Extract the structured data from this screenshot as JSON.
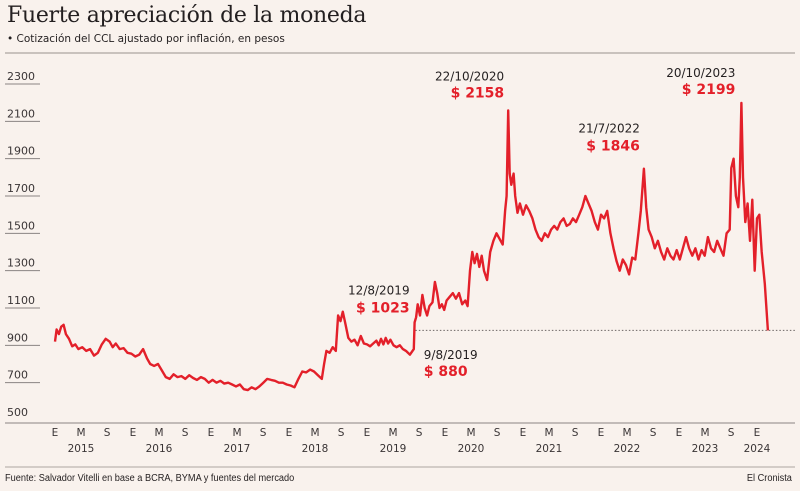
{
  "header": {
    "title": "Fuerte apreciación de la moneda",
    "subtitle": "• Cotización del CCL ajustado por inflación, en pesos"
  },
  "footer": {
    "source": "Fuente: Salvador Vitelli en base a BCRA, BYMA y fuentes del mercado",
    "brand": "El Cronista"
  },
  "colors": {
    "line": "#e3202a",
    "background": "#f9f2ed",
    "text": "#231f20",
    "grid": "#8a8482"
  },
  "chart_data": {
    "type": "line",
    "title": "Fuerte apreciación de la moneda",
    "subtitle": "Cotización del CCL ajustado por inflación, en pesos",
    "xlabel": "",
    "ylabel": "",
    "ylim": [
      500,
      2300
    ],
    "yticks": [
      2300,
      2100,
      1900,
      1700,
      1500,
      1300,
      1100,
      900,
      700,
      500
    ],
    "xlim": [
      "2015-01",
      "2024-03"
    ],
    "x_month_ticks": [
      {
        "label": "E",
        "t": 2015.0
      },
      {
        "label": "M",
        "t": 2015.333
      },
      {
        "label": "S",
        "t": 2015.667
      },
      {
        "label": "E",
        "t": 2016.0
      },
      {
        "label": "M",
        "t": 2016.333
      },
      {
        "label": "S",
        "t": 2016.667
      },
      {
        "label": "E",
        "t": 2017.0
      },
      {
        "label": "M",
        "t": 2017.333
      },
      {
        "label": "S",
        "t": 2017.667
      },
      {
        "label": "E",
        "t": 2018.0
      },
      {
        "label": "M",
        "t": 2018.333
      },
      {
        "label": "S",
        "t": 2018.667
      },
      {
        "label": "E",
        "t": 2019.0
      },
      {
        "label": "M",
        "t": 2019.333
      },
      {
        "label": "S",
        "t": 2019.667
      },
      {
        "label": "E",
        "t": 2020.0
      },
      {
        "label": "M",
        "t": 2020.333
      },
      {
        "label": "S",
        "t": 2020.667
      },
      {
        "label": "E",
        "t": 2021.0
      },
      {
        "label": "M",
        "t": 2021.333
      },
      {
        "label": "S",
        "t": 2021.667
      },
      {
        "label": "E",
        "t": 2022.0
      },
      {
        "label": "M",
        "t": 2022.333
      },
      {
        "label": "S",
        "t": 2022.667
      },
      {
        "label": "E",
        "t": 2023.0
      },
      {
        "label": "M",
        "t": 2023.333
      },
      {
        "label": "S",
        "t": 2023.667
      },
      {
        "label": "E",
        "t": 2024.0
      }
    ],
    "x_year_labels": [
      {
        "label": "2015",
        "t": 2015.333
      },
      {
        "label": "2016",
        "t": 2016.333
      },
      {
        "label": "2017",
        "t": 2017.333
      },
      {
        "label": "2018",
        "t": 2018.333
      },
      {
        "label": "2019",
        "t": 2019.333
      },
      {
        "label": "2020",
        "t": 2020.333
      },
      {
        "label": "2021",
        "t": 2021.333
      },
      {
        "label": "2022",
        "t": 2022.333
      },
      {
        "label": "2023",
        "t": 2023.333
      },
      {
        "label": "2024",
        "t": 2024.0
      }
    ],
    "grid": false,
    "reference_line": {
      "value": 980,
      "from": 2019.62,
      "style": "dotted"
    },
    "series": [
      {
        "name": "CCL ajustado por inflación",
        "points": [
          [
            2015.0,
            920
          ],
          [
            2015.02,
            985
          ],
          [
            2015.05,
            960
          ],
          [
            2015.08,
            1000
          ],
          [
            2015.11,
            1010
          ],
          [
            2015.14,
            960
          ],
          [
            2015.18,
            935
          ],
          [
            2015.22,
            895
          ],
          [
            2015.26,
            905
          ],
          [
            2015.3,
            880
          ],
          [
            2015.35,
            890
          ],
          [
            2015.4,
            870
          ],
          [
            2015.45,
            880
          ],
          [
            2015.5,
            845
          ],
          [
            2015.55,
            860
          ],
          [
            2015.6,
            905
          ],
          [
            2015.65,
            935
          ],
          [
            2015.7,
            920
          ],
          [
            2015.74,
            890
          ],
          [
            2015.78,
            910
          ],
          [
            2015.83,
            880
          ],
          [
            2015.88,
            885
          ],
          [
            2015.93,
            860
          ],
          [
            2015.98,
            855
          ],
          [
            2016.03,
            840
          ],
          [
            2016.08,
            850
          ],
          [
            2016.13,
            880
          ],
          [
            2016.18,
            830
          ],
          [
            2016.22,
            800
          ],
          [
            2016.27,
            790
          ],
          [
            2016.32,
            800
          ],
          [
            2016.37,
            765
          ],
          [
            2016.42,
            730
          ],
          [
            2016.47,
            720
          ],
          [
            2016.52,
            745
          ],
          [
            2016.57,
            730
          ],
          [
            2016.62,
            735
          ],
          [
            2016.67,
            720
          ],
          [
            2016.72,
            740
          ],
          [
            2016.77,
            725
          ],
          [
            2016.82,
            715
          ],
          [
            2016.87,
            730
          ],
          [
            2016.92,
            720
          ],
          [
            2016.97,
            700
          ],
          [
            2017.02,
            715
          ],
          [
            2017.07,
            700
          ],
          [
            2017.12,
            710
          ],
          [
            2017.17,
            695
          ],
          [
            2017.22,
            700
          ],
          [
            2017.27,
            690
          ],
          [
            2017.32,
            680
          ],
          [
            2017.37,
            690
          ],
          [
            2017.42,
            665
          ],
          [
            2017.47,
            660
          ],
          [
            2017.52,
            675
          ],
          [
            2017.57,
            665
          ],
          [
            2017.62,
            680
          ],
          [
            2017.67,
            700
          ],
          [
            2017.72,
            720
          ],
          [
            2017.77,
            715
          ],
          [
            2017.82,
            710
          ],
          [
            2017.87,
            700
          ],
          [
            2017.92,
            700
          ],
          [
            2017.97,
            690
          ],
          [
            2018.02,
            685
          ],
          [
            2018.07,
            675
          ],
          [
            2018.12,
            720
          ],
          [
            2018.17,
            760
          ],
          [
            2018.22,
            755
          ],
          [
            2018.27,
            770
          ],
          [
            2018.32,
            760
          ],
          [
            2018.37,
            740
          ],
          [
            2018.42,
            720
          ],
          [
            2018.45,
            800
          ],
          [
            2018.48,
            870
          ],
          [
            2018.52,
            860
          ],
          [
            2018.56,
            890
          ],
          [
            2018.6,
            870
          ],
          [
            2018.63,
            1060
          ],
          [
            2018.66,
            1030
          ],
          [
            2018.69,
            1080
          ],
          [
            2018.72,
            1020
          ],
          [
            2018.76,
            940
          ],
          [
            2018.8,
            920
          ],
          [
            2018.84,
            930
          ],
          [
            2018.88,
            900
          ],
          [
            2018.92,
            950
          ],
          [
            2018.96,
            910
          ],
          [
            2019.0,
            905
          ],
          [
            2019.04,
            895
          ],
          [
            2019.08,
            910
          ],
          [
            2019.12,
            925
          ],
          [
            2019.15,
            900
          ],
          [
            2019.18,
            935
          ],
          [
            2019.21,
            905
          ],
          [
            2019.24,
            940
          ],
          [
            2019.27,
            910
          ],
          [
            2019.3,
            930
          ],
          [
            2019.34,
            900
          ],
          [
            2019.38,
            890
          ],
          [
            2019.42,
            900
          ],
          [
            2019.46,
            880
          ],
          [
            2019.5,
            870
          ],
          [
            2019.55,
            850
          ],
          [
            2019.6,
            880
          ],
          [
            2019.61,
            1023
          ],
          [
            2019.63,
            1050
          ],
          [
            2019.65,
            1120
          ],
          [
            2019.68,
            1060
          ],
          [
            2019.71,
            1170
          ],
          [
            2019.74,
            1100
          ],
          [
            2019.77,
            1060
          ],
          [
            2019.8,
            1110
          ],
          [
            2019.84,
            1130
          ],
          [
            2019.87,
            1240
          ],
          [
            2019.9,
            1180
          ],
          [
            2019.93,
            1100
          ],
          [
            2019.96,
            1120
          ],
          [
            2019.99,
            1090
          ],
          [
            2020.02,
            1140
          ],
          [
            2020.06,
            1160
          ],
          [
            2020.1,
            1180
          ],
          [
            2020.14,
            1150
          ],
          [
            2020.18,
            1180
          ],
          [
            2020.22,
            1120
          ],
          [
            2020.26,
            1140
          ],
          [
            2020.29,
            1110
          ],
          [
            2020.32,
            1300
          ],
          [
            2020.35,
            1400
          ],
          [
            2020.38,
            1340
          ],
          [
            2020.41,
            1390
          ],
          [
            2020.44,
            1320
          ],
          [
            2020.47,
            1380
          ],
          [
            2020.5,
            1300
          ],
          [
            2020.54,
            1250
          ],
          [
            2020.58,
            1400
          ],
          [
            2020.62,
            1460
          ],
          [
            2020.66,
            1500
          ],
          [
            2020.7,
            1470
          ],
          [
            2020.74,
            1440
          ],
          [
            2020.77,
            1620
          ],
          [
            2020.79,
            1700
          ],
          [
            2020.81,
            2158
          ],
          [
            2020.83,
            1820
          ],
          [
            2020.85,
            1760
          ],
          [
            2020.88,
            1820
          ],
          [
            2020.9,
            1700
          ],
          [
            2020.93,
            1610
          ],
          [
            2020.96,
            1660
          ],
          [
            2021.0,
            1600
          ],
          [
            2021.04,
            1650
          ],
          [
            2021.08,
            1620
          ],
          [
            2021.12,
            1580
          ],
          [
            2021.16,
            1520
          ],
          [
            2021.2,
            1480
          ],
          [
            2021.24,
            1460
          ],
          [
            2021.28,
            1500
          ],
          [
            2021.32,
            1480
          ],
          [
            2021.36,
            1520
          ],
          [
            2021.4,
            1540
          ],
          [
            2021.44,
            1520
          ],
          [
            2021.48,
            1560
          ],
          [
            2021.52,
            1580
          ],
          [
            2021.56,
            1540
          ],
          [
            2021.6,
            1550
          ],
          [
            2021.64,
            1580
          ],
          [
            2021.68,
            1560
          ],
          [
            2021.72,
            1600
          ],
          [
            2021.76,
            1640
          ],
          [
            2021.8,
            1700
          ],
          [
            2021.84,
            1660
          ],
          [
            2021.88,
            1620
          ],
          [
            2021.92,
            1560
          ],
          [
            2021.96,
            1520
          ],
          [
            2022.0,
            1600
          ],
          [
            2022.04,
            1580
          ],
          [
            2022.08,
            1620
          ],
          [
            2022.12,
            1500
          ],
          [
            2022.16,
            1420
          ],
          [
            2022.2,
            1350
          ],
          [
            2022.24,
            1300
          ],
          [
            2022.28,
            1360
          ],
          [
            2022.32,
            1330
          ],
          [
            2022.36,
            1280
          ],
          [
            2022.4,
            1370
          ],
          [
            2022.44,
            1360
          ],
          [
            2022.48,
            1500
          ],
          [
            2022.51,
            1620
          ],
          [
            2022.55,
            1846
          ],
          [
            2022.58,
            1640
          ],
          [
            2022.61,
            1520
          ],
          [
            2022.65,
            1480
          ],
          [
            2022.69,
            1420
          ],
          [
            2022.73,
            1460
          ],
          [
            2022.77,
            1400
          ],
          [
            2022.81,
            1360
          ],
          [
            2022.85,
            1420
          ],
          [
            2022.89,
            1380
          ],
          [
            2022.93,
            1360
          ],
          [
            2022.97,
            1410
          ],
          [
            2023.01,
            1360
          ],
          [
            2023.05,
            1420
          ],
          [
            2023.09,
            1480
          ],
          [
            2023.13,
            1420
          ],
          [
            2023.17,
            1380
          ],
          [
            2023.21,
            1420
          ],
          [
            2023.25,
            1360
          ],
          [
            2023.29,
            1410
          ],
          [
            2023.33,
            1380
          ],
          [
            2023.37,
            1480
          ],
          [
            2023.41,
            1420
          ],
          [
            2023.45,
            1400
          ],
          [
            2023.49,
            1460
          ],
          [
            2023.53,
            1420
          ],
          [
            2023.57,
            1380
          ],
          [
            2023.61,
            1500
          ],
          [
            2023.65,
            1520
          ],
          [
            2023.67,
            1850
          ],
          [
            2023.7,
            1900
          ],
          [
            2023.73,
            1700
          ],
          [
            2023.76,
            1640
          ],
          [
            2023.78,
            1800
          ],
          [
            2023.8,
            2199
          ],
          [
            2023.82,
            1800
          ],
          [
            2023.85,
            1560
          ],
          [
            2023.88,
            1660
          ],
          [
            2023.91,
            1460
          ],
          [
            2023.94,
            1680
          ],
          [
            2023.97,
            1300
          ],
          [
            2024.0,
            1580
          ],
          [
            2024.03,
            1600
          ],
          [
            2024.06,
            1400
          ],
          [
            2024.1,
            1230
          ],
          [
            2024.14,
            980
          ]
        ]
      }
    ],
    "annotations": [
      {
        "date": "22/10/2020",
        "value": "$ 2158",
        "x": 2020.81,
        "y": 2158
      },
      {
        "date": "20/10/2023",
        "value": "$ 2199",
        "x": 2023.8,
        "y": 2199
      },
      {
        "date": "21/7/2022",
        "value": "$ 1846",
        "x": 2022.55,
        "y": 1846
      },
      {
        "date": "12/8/2019",
        "value": "$ 1023",
        "x": 2019.61,
        "y": 1023
      },
      {
        "date": "9/8/2019",
        "value": "$ 880",
        "x": 2019.6,
        "y": 880
      }
    ]
  }
}
